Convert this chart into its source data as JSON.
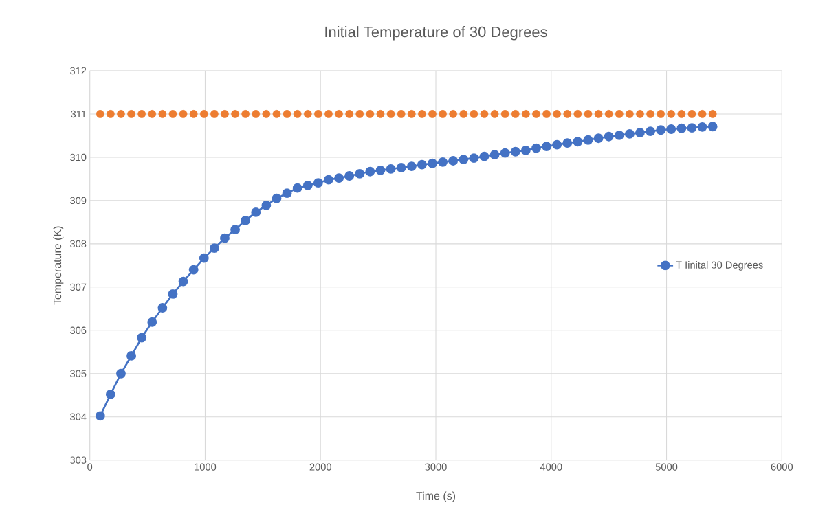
{
  "chart_data": {
    "type": "line",
    "title": "Initial Temperature of 30 Degrees",
    "xlabel": "Time (s)",
    "ylabel": "Temperature (K)",
    "x": [
      90,
      180,
      270,
      360,
      450,
      540,
      630,
      720,
      810,
      900,
      990,
      1080,
      1170,
      1260,
      1350,
      1440,
      1530,
      1620,
      1710,
      1800,
      1890,
      1980,
      2070,
      2160,
      2250,
      2340,
      2430,
      2520,
      2610,
      2700,
      2790,
      2880,
      2970,
      3060,
      3150,
      3240,
      3330,
      3420,
      3510,
      3600,
      3690,
      3780,
      3870,
      3960,
      4050,
      4140,
      4230,
      4320,
      4410,
      4500,
      4590,
      4680,
      4770,
      4860,
      4950,
      5040,
      5130,
      5220,
      5310,
      5400
    ],
    "series": [
      {
        "name": "T Iinital 30 Degrees",
        "color": "#4472c4",
        "values": [
          304.02,
          304.52,
          305.0,
          305.41,
          305.83,
          306.19,
          306.52,
          306.84,
          307.13,
          307.4,
          307.67,
          307.9,
          308.13,
          308.33,
          308.54,
          308.73,
          308.89,
          309.05,
          309.17,
          309.29,
          309.35,
          309.41,
          309.48,
          309.52,
          309.57,
          309.62,
          309.67,
          309.7,
          309.73,
          309.76,
          309.79,
          309.83,
          309.86,
          309.89,
          309.92,
          309.95,
          309.98,
          310.02,
          310.06,
          310.1,
          310.13,
          310.16,
          310.21,
          310.25,
          310.29,
          310.33,
          310.36,
          310.4,
          310.44,
          310.48,
          310.51,
          310.54,
          310.57,
          310.6,
          310.63,
          310.65,
          310.67,
          310.68,
          310.7,
          310.71
        ]
      },
      {
        "type": "scatter",
        "color": "#ed7d31",
        "values": [
          311,
          311,
          311,
          311,
          311,
          311,
          311,
          311,
          311,
          311,
          311,
          311,
          311,
          311,
          311,
          311,
          311,
          311,
          311,
          311,
          311,
          311,
          311,
          311,
          311,
          311,
          311,
          311,
          311,
          311,
          311,
          311,
          311,
          311,
          311,
          311,
          311,
          311,
          311,
          311,
          311,
          311,
          311,
          311,
          311,
          311,
          311,
          311,
          311,
          311,
          311,
          311,
          311,
          311,
          311,
          311,
          311,
          311,
          311,
          311
        ]
      }
    ],
    "xlim": [
      0,
      6000
    ],
    "xticks": [
      0,
      1000,
      2000,
      3000,
      4000,
      5000,
      6000
    ],
    "ylim": [
      303,
      312
    ],
    "yticks": [
      303,
      304,
      305,
      306,
      307,
      308,
      309,
      310,
      311,
      312
    ],
    "grid": true,
    "legend": "right",
    "marker": "circle"
  }
}
